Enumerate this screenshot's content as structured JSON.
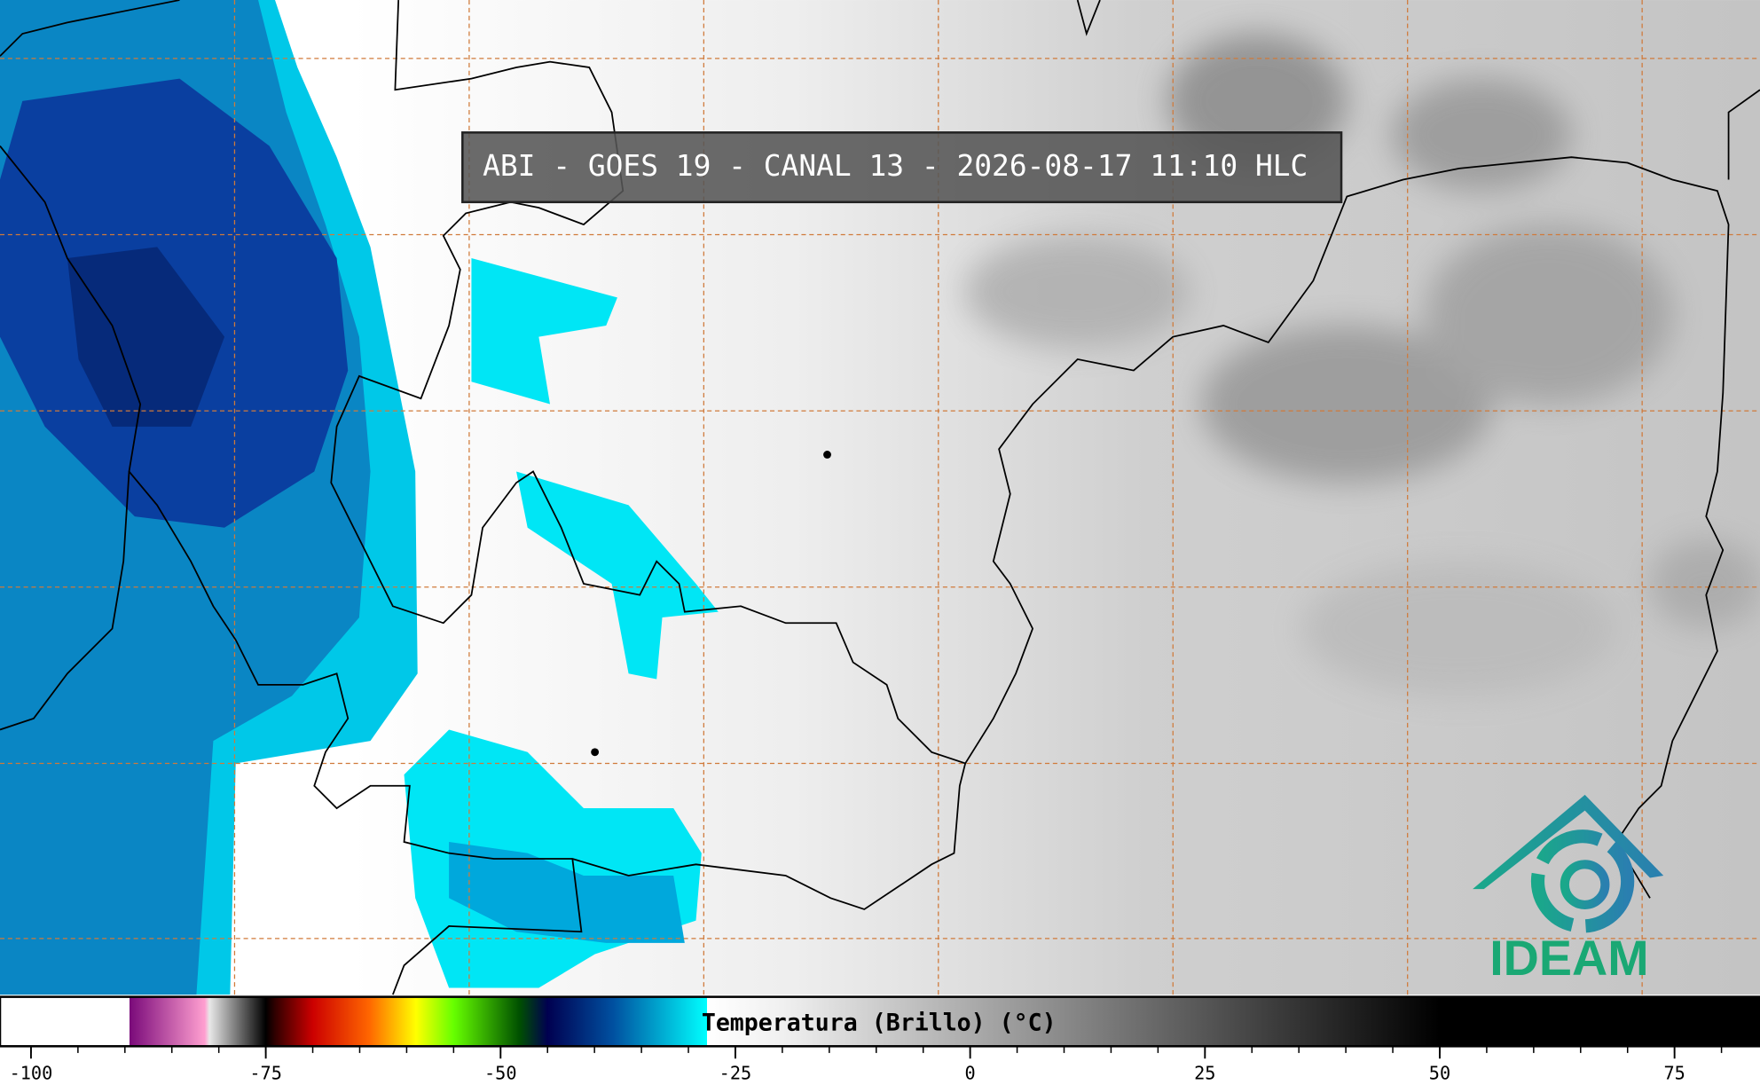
{
  "title": "ABI - GOES 19 - CANAL 13 - 2026-08-17 11:10 HLC",
  "logo": "IDEAM",
  "colorbar": {
    "label": "Temperatura (Brillo) (°C)",
    "lim": [
      -103.3,
      84.1
    ],
    "ticks": [
      -100,
      -75,
      -50,
      -25,
      0,
      25,
      50,
      75
    ],
    "minor_ticks": [
      -100,
      -95,
      -90,
      -85,
      -80,
      -75,
      -70,
      -65,
      -60,
      -55,
      -50,
      -45,
      -40,
      -35,
      -30,
      -25,
      -20,
      -15,
      -10,
      -5,
      0,
      5,
      10,
      15,
      20,
      25,
      30,
      35,
      40,
      45,
      50,
      55,
      60,
      65,
      70,
      75,
      80
    ],
    "stops": [
      {
        "value": -103.3,
        "color": "#ffffff"
      },
      {
        "value": -89.5,
        "color": "#ffffff"
      },
      {
        "value": -89.5,
        "color": "#7a0a7a"
      },
      {
        "value": -81.5,
        "color": "#ff9fd0"
      },
      {
        "value": -81,
        "color": "#e8e8e8"
      },
      {
        "value": -75,
        "color": "#000000"
      },
      {
        "value": -74,
        "color": "#300000"
      },
      {
        "value": -70,
        "color": "#cc0000"
      },
      {
        "value": -64,
        "color": "#ff6600"
      },
      {
        "value": -59,
        "color": "#ffff00"
      },
      {
        "value": -55,
        "color": "#66ff00"
      },
      {
        "value": -48,
        "color": "#005000"
      },
      {
        "value": -45,
        "color": "#000050"
      },
      {
        "value": -38,
        "color": "#0050a0"
      },
      {
        "value": -28,
        "color": "#00ffff"
      },
      {
        "value": -28,
        "color": "#ffffff"
      },
      {
        "value": -20,
        "color": "#f0f0f0"
      },
      {
        "value": 50,
        "color": "#000000"
      },
      {
        "value": 84.1,
        "color": "#000000"
      }
    ]
  }
}
